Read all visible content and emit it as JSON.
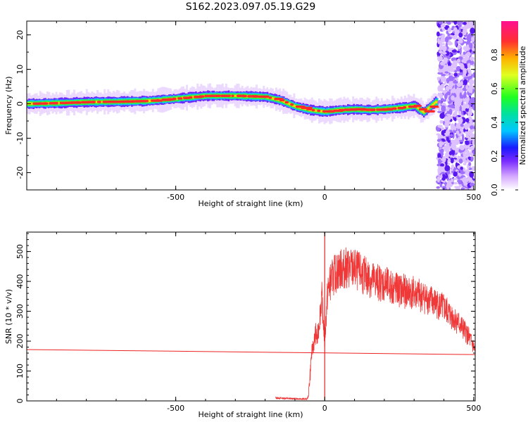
{
  "figure": {
    "title": "S162.2023.097.05.19.G29"
  },
  "chart_data": [
    {
      "type": "heatmap",
      "name": "spectrogram",
      "xlabel": "Height of straight line (km)",
      "ylabel": "Frequency (Hz)",
      "xlim": [
        -1000,
        505
      ],
      "ylim": [
        -25,
        24
      ],
      "x_ticks": [
        -500,
        0,
        500
      ],
      "y_ticks": [
        -20,
        -10,
        0,
        10,
        20
      ],
      "colorbar": {
        "label": "Normalized spectral amplitude",
        "range": [
          0,
          1
        ],
        "ticks": [
          "0.0",
          "0.2",
          "0.4",
          "0.6",
          "0.8"
        ],
        "colors": [
          "#ffffff",
          "#d6a9ff",
          "#7a2cff",
          "#1a1aff",
          "#00c8ff",
          "#00e0a0",
          "#20ff20",
          "#e0ff20",
          "#ffb000",
          "#ff3030",
          "#ff1090"
        ]
      },
      "ridge": {
        "x": [
          -1000,
          -900,
          -800,
          -700,
          -600,
          -500,
          -400,
          -300,
          -200,
          -150,
          -100,
          -50,
          0,
          50,
          100,
          150,
          200,
          250,
          300,
          330,
          370
        ],
        "y": [
          0,
          0.2,
          0.5,
          0.6,
          0.8,
          1.5,
          2.3,
          2.3,
          2.0,
          1.0,
          -0.8,
          -1.8,
          -2.3,
          -1.8,
          -1.6,
          -1.8,
          -1.6,
          -1.2,
          -0.6,
          -2.5,
          0.5
        ]
      },
      "noise_region_x": [
        380,
        505
      ]
    },
    {
      "type": "line",
      "name": "snr",
      "xlabel": "Height of straight line (km)",
      "ylabel": "SNR (10 * v/v)",
      "xlim": [
        -1000,
        505
      ],
      "ylim": [
        0,
        565
      ],
      "x_ticks": [
        -500,
        0,
        500
      ],
      "y_ticks": [
        0,
        100,
        200,
        300,
        400,
        500
      ],
      "series": [
        {
          "color": "#ee2222",
          "x": [
            -165,
            -120,
            -80,
            -60,
            -55,
            -50,
            -45,
            -40,
            -35,
            -30,
            -25,
            -20,
            -10,
            0,
            10,
            20,
            30,
            50,
            80,
            100,
            150,
            200,
            250,
            300,
            350,
            400,
            450,
            480,
            500,
            505
          ],
          "y": [
            10,
            8,
            7,
            6,
            15,
            80,
            150,
            180,
            200,
            230,
            200,
            250,
            350,
            200,
            370,
            400,
            420,
            440,
            445,
            440,
            410,
            390,
            370,
            360,
            340,
            310,
            260,
            220,
            180,
            160
          ]
        },
        {
          "color": "#ee2222",
          "x": [
            -1000,
            505
          ],
          "y": [
            172,
            155
          ]
        }
      ],
      "spike": {
        "x": 0,
        "y_top": 565,
        "y_bottom": 5
      }
    }
  ]
}
